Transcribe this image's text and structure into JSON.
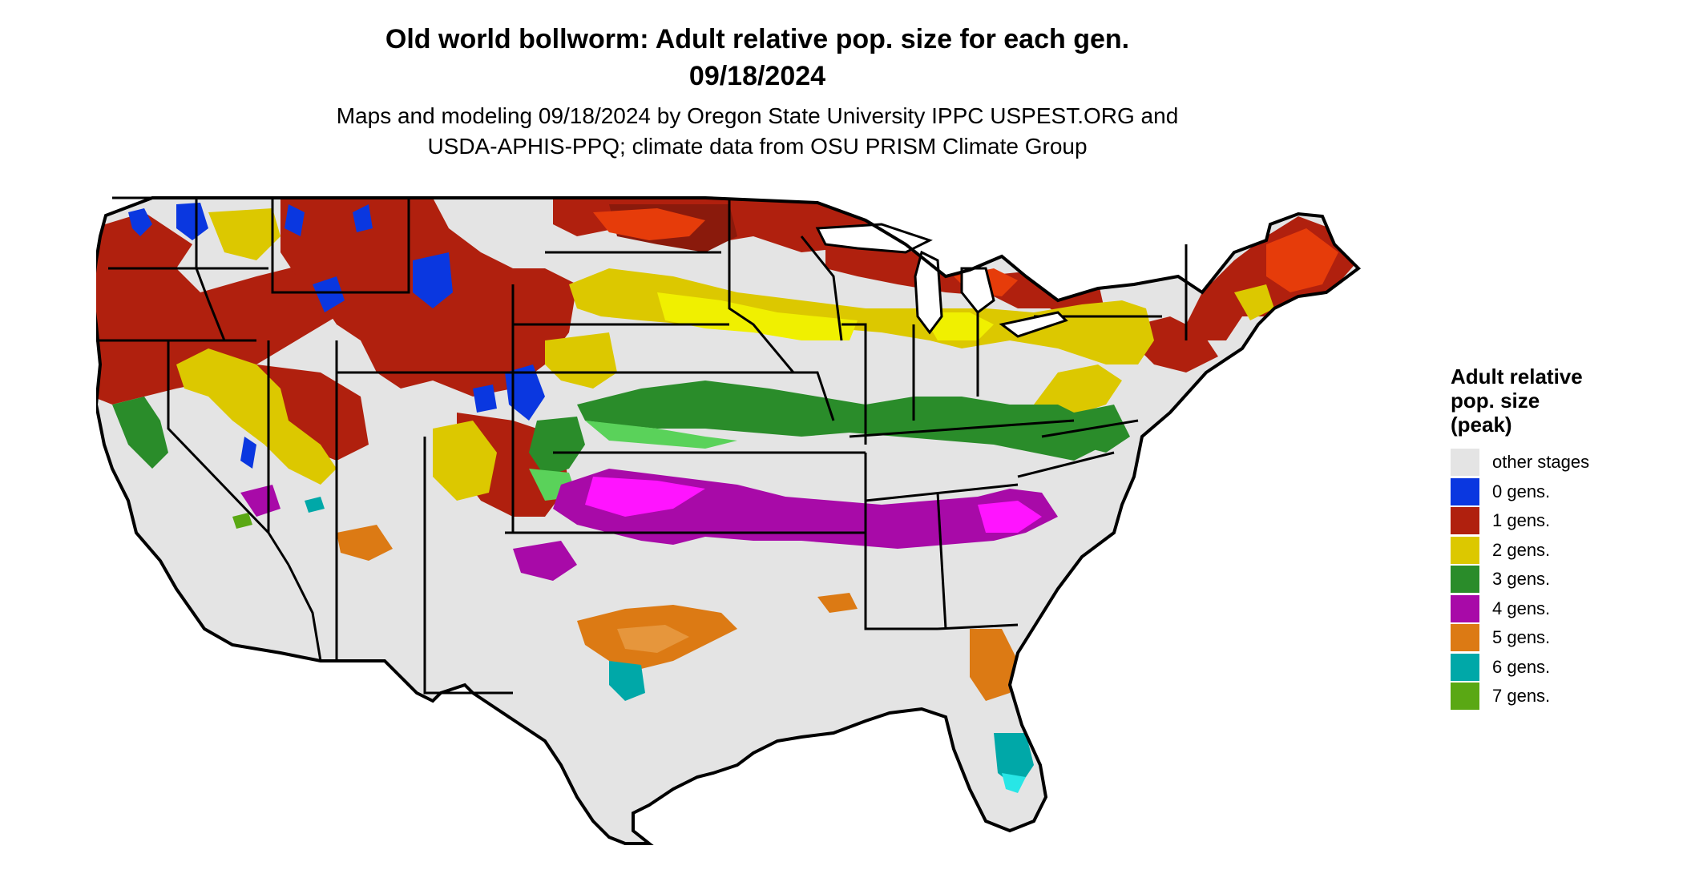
{
  "title": {
    "line1": "Old world bollworm: Adult relative pop. size for each gen.",
    "line2": "09/18/2024"
  },
  "subtitle": {
    "line1": "Maps and modeling 09/18/2024 by Oregon State University IPPC USPEST.ORG and",
    "line2": "USDA-APHIS-PPQ; climate data from OSU PRISM Climate Group"
  },
  "legend": {
    "title_line1": "Adult relative",
    "title_line2": "pop. size",
    "title_line3": "(peak)",
    "items": [
      {
        "label": "other stages",
        "color": "#e4e4e4"
      },
      {
        "label": "0 gens.",
        "color": "#0a37e0"
      },
      {
        "label": "1 gens.",
        "color": "#b0200e"
      },
      {
        "label": "2 gens.",
        "color": "#dcc800"
      },
      {
        "label": "3 gens.",
        "color": "#2a8c2a"
      },
      {
        "label": "4 gens.",
        "color": "#a80aa8"
      },
      {
        "label": "5 gens.",
        "color": "#dc7a14"
      },
      {
        "label": "6 gens.",
        "color": "#00a8a8"
      },
      {
        "label": "7 gens.",
        "color": "#5aa814"
      }
    ]
  },
  "map": {
    "background_color": "#e4e4e4",
    "border_color": "#000000",
    "highlight_colors": {
      "gen1_bright": "#e63c0a",
      "gen2_bright": "#f0f000",
      "gen3_light": "#5ad25a",
      "gen4_bright": "#ff14ff",
      "gen5_light": "#e6963c",
      "gen6_bright": "#28e6e6"
    }
  }
}
